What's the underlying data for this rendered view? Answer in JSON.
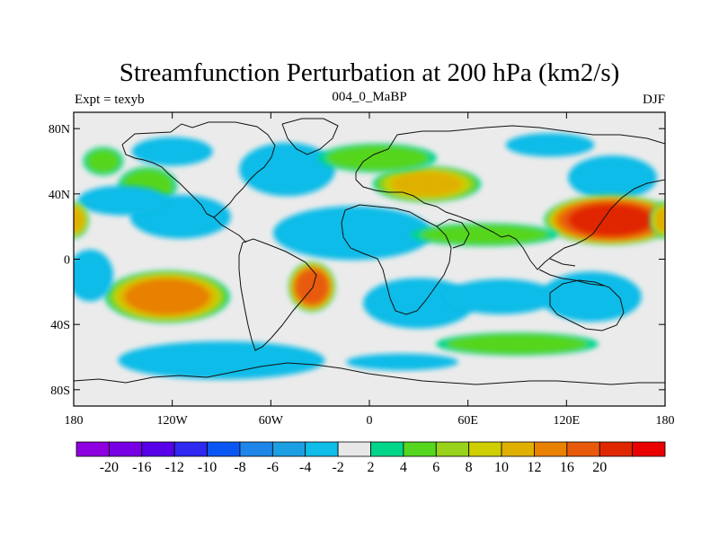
{
  "title": "Streamfunction Perturbation at 200 hPa (km2/s)",
  "left_subtitle": "Expt = texyb",
  "center_subtitle": "004_0_MaBP",
  "right_subtitle": "DJF",
  "map": {
    "lon_range": [
      -180,
      180
    ],
    "lat_range": [
      -90,
      90
    ],
    "x_ticks": [
      {
        "value": -180,
        "label": "180"
      },
      {
        "value": -120,
        "label": "120W"
      },
      {
        "value": -60,
        "label": "60W"
      },
      {
        "value": 0,
        "label": "0"
      },
      {
        "value": 60,
        "label": "60E"
      },
      {
        "value": 120,
        "label": "120E"
      },
      {
        "value": 180,
        "label": "180"
      }
    ],
    "y_ticks": [
      {
        "value": 80,
        "label": "80N"
      },
      {
        "value": 40,
        "label": "40N"
      },
      {
        "value": 0,
        "label": "0"
      },
      {
        "value": -40,
        "label": "40S"
      },
      {
        "value": -80,
        "label": "80S"
      }
    ],
    "background_color": "#ebebeb",
    "anomalies": [
      {
        "lon": -135,
        "lat": 45,
        "value": 5,
        "rx": 20,
        "ry": 13
      },
      {
        "lon": -162,
        "lat": 60,
        "value": 4,
        "rx": 14,
        "ry": 10
      },
      {
        "lon": -115,
        "lat": 26,
        "value": -14,
        "rx": 32,
        "ry": 14
      },
      {
        "lon": -150,
        "lat": 36,
        "value": -6,
        "rx": 30,
        "ry": 10
      },
      {
        "lon": -50,
        "lat": 55,
        "value": -6,
        "rx": 32,
        "ry": 18
      },
      {
        "lon": -120,
        "lat": 66,
        "value": -4,
        "rx": 28,
        "ry": 10
      },
      {
        "lon": -10,
        "lat": 16,
        "value": -22,
        "rx": 50,
        "ry": 17
      },
      {
        "lon": 35,
        "lat": 46,
        "value": 10,
        "rx": 35,
        "ry": 12
      },
      {
        "lon": 5,
        "lat": 62,
        "value": 5,
        "rx": 40,
        "ry": 10
      },
      {
        "lon": 148,
        "lat": 50,
        "value": -18,
        "rx": 28,
        "ry": 14
      },
      {
        "lon": 110,
        "lat": 70,
        "value": -5,
        "rx": 30,
        "ry": 8
      },
      {
        "lon": 147,
        "lat": 24,
        "value": 22,
        "rx": 42,
        "ry": 16
      },
      {
        "lon": 70,
        "lat": 15,
        "value": 5,
        "rx": 50,
        "ry": 8
      },
      {
        "lon": -180,
        "lat": 24,
        "value": 10,
        "rx": 10,
        "ry": 12
      },
      {
        "lon": 180,
        "lat": 24,
        "value": 10,
        "rx": 10,
        "ry": 12
      },
      {
        "lon": -123,
        "lat": -23,
        "value": 13,
        "rx": 40,
        "ry": 17
      },
      {
        "lon": -170,
        "lat": -10,
        "value": -4,
        "rx": 16,
        "ry": 18
      },
      {
        "lon": -35,
        "lat": -17,
        "value": 18,
        "rx": 15,
        "ry": 16
      },
      {
        "lon": 30,
        "lat": -27,
        "value": -18,
        "rx": 35,
        "ry": 16
      },
      {
        "lon": 135,
        "lat": -23,
        "value": -14,
        "rx": 32,
        "ry": 16
      },
      {
        "lon": 80,
        "lat": -23,
        "value": -5,
        "rx": 38,
        "ry": 12
      },
      {
        "lon": -90,
        "lat": -62,
        "value": -5,
        "rx": 70,
        "ry": 13
      },
      {
        "lon": 90,
        "lat": -52,
        "value": 5,
        "rx": 55,
        "ry": 8
      },
      {
        "lon": 20,
        "lat": -63,
        "value": -3,
        "rx": 40,
        "ry": 6
      }
    ]
  },
  "colorbar": {
    "colors": [
      "#8f00e0",
      "#7800e4",
      "#5800e8",
      "#2e28f0",
      "#0a56f2",
      "#1e86e8",
      "#1c9ee2",
      "#10bce8",
      "#e8e8e8",
      "#00d68a",
      "#55d61f",
      "#98d21a",
      "#cece00",
      "#e0b000",
      "#e88000",
      "#e85a0a",
      "#e02800",
      "#ea0000"
    ],
    "labels": [
      "-20",
      "-16",
      "-12",
      "-10",
      "-8",
      "-6",
      "-4",
      "-2",
      "2",
      "4",
      "6",
      "8",
      "10",
      "12",
      "16",
      "20"
    ]
  }
}
